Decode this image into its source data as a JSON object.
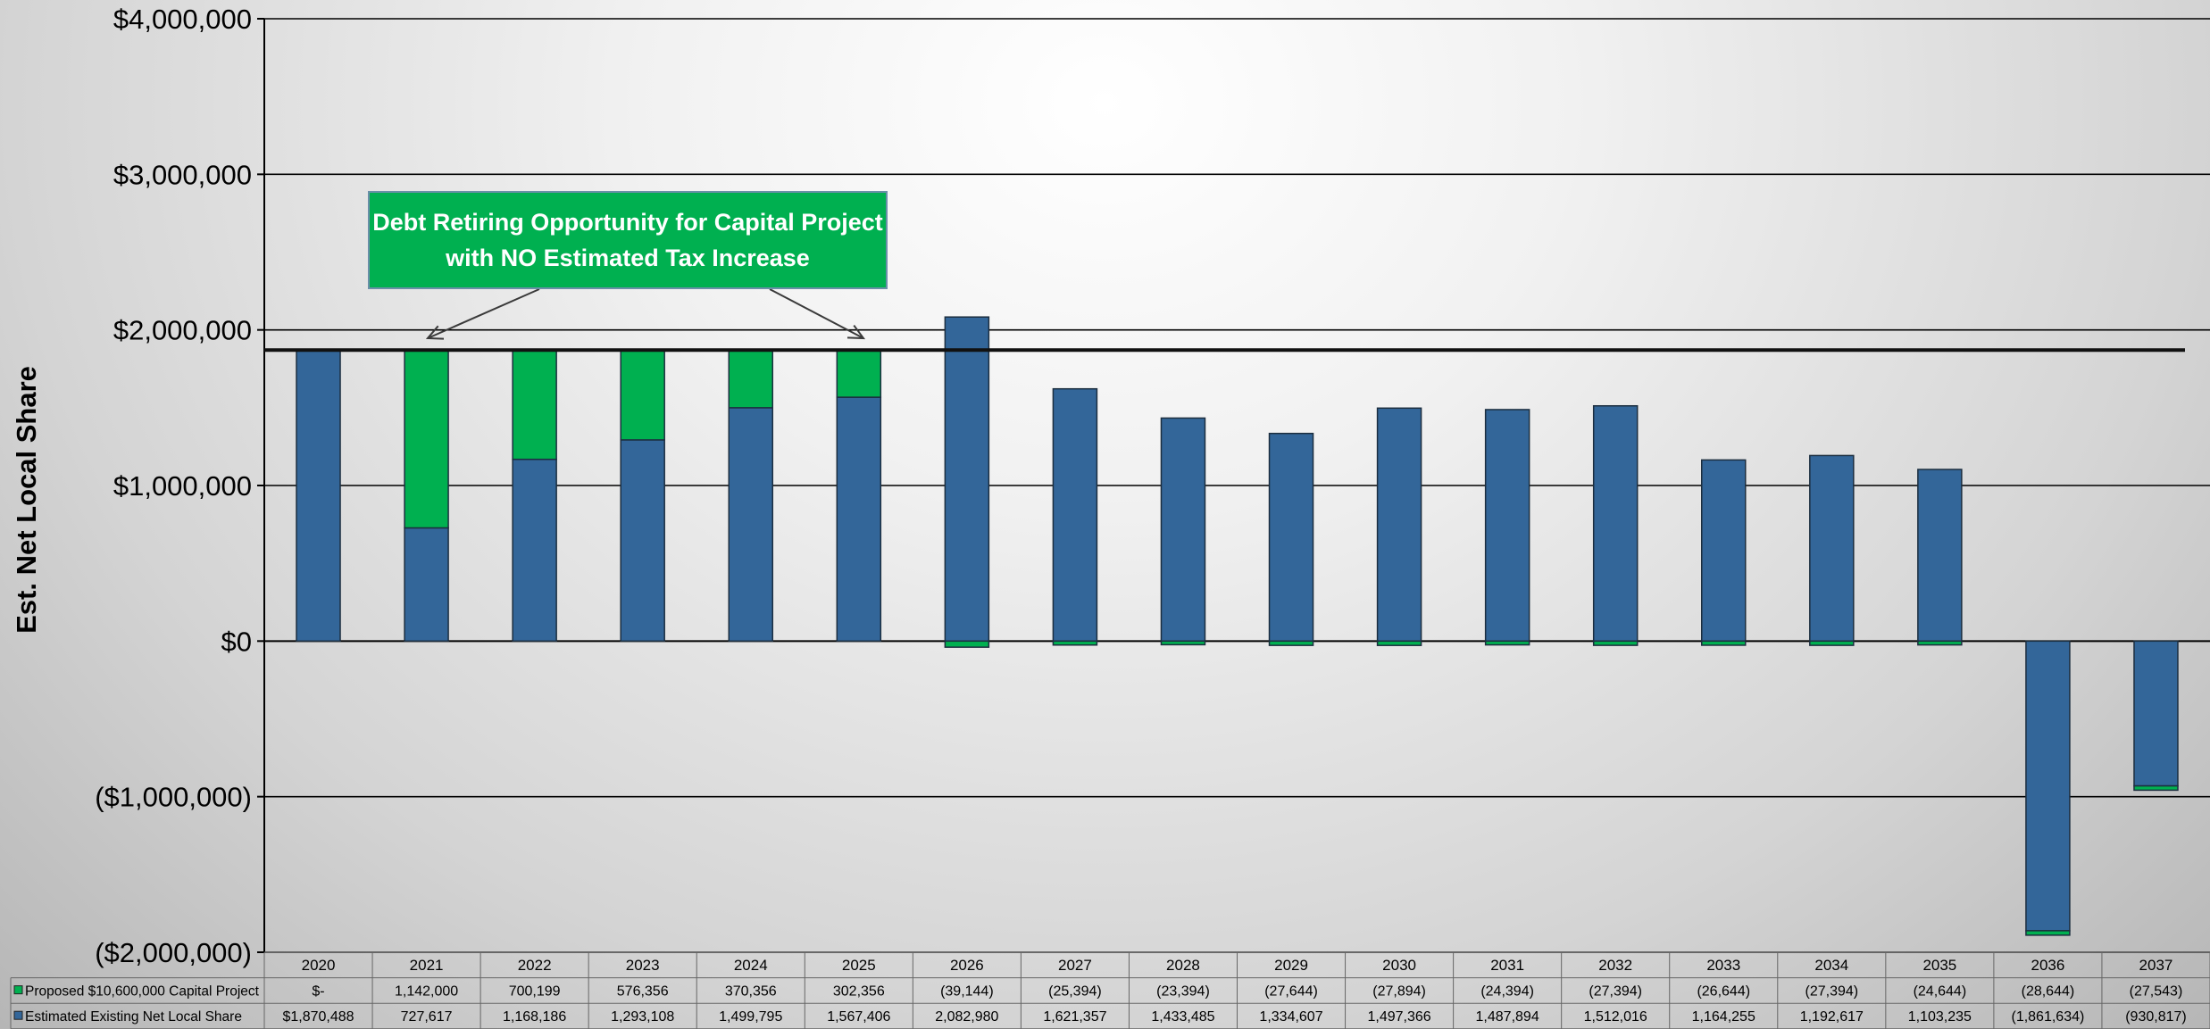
{
  "chart_data": {
    "type": "bar",
    "stacked": true,
    "ylabel": "Est. Net Local Share",
    "ylim": [
      -2000000,
      4000000
    ],
    "yticks": [
      4000000,
      3000000,
      2000000,
      1000000,
      0,
      -1000000,
      -2000000
    ],
    "ytick_labels": [
      "$4,000,000",
      "$3,000,000",
      "$2,000,000",
      "$1,000,000",
      "$0",
      "($1,000,000)",
      "($2,000,000)"
    ],
    "grid": true,
    "reference_line": 1870488,
    "categories": [
      "2020",
      "2021",
      "2022",
      "2023",
      "2024",
      "2025",
      "2026",
      "2027",
      "2028",
      "2029",
      "2030",
      "2031",
      "2032",
      "2033",
      "2034",
      "2035",
      "2036",
      "2037"
    ],
    "series": [
      {
        "name": "Estimated Existing Net Local Share",
        "color": "#336699",
        "values": [
          1870488,
          727617,
          1168186,
          1293108,
          1499795,
          1567406,
          2082980,
          1621357,
          1433485,
          1334607,
          1497366,
          1487894,
          1512016,
          1164255,
          1192617,
          1103235,
          -1861634,
          -930817
        ],
        "labels": [
          "$1,870,488",
          "727,617",
          "1,168,186",
          "1,293,108",
          "1,499,795",
          "1,567,406",
          "2,082,980",
          "1,621,357",
          "1,433,485",
          "1,334,607",
          "1,497,366",
          "1,487,894",
          "1,512,016",
          "1,164,255",
          "1,192,617",
          "1,103,235",
          "(1,861,634)",
          "(930,817)"
        ]
      },
      {
        "name": "Proposed $10,600,000 Capital Project",
        "color": "#00b050",
        "values": [
          0,
          1142000,
          700199,
          576356,
          370356,
          302356,
          -39144,
          -25394,
          -23394,
          -27644,
          -27894,
          -24394,
          -27394,
          -26644,
          -27394,
          -24644,
          -28644,
          -27543
        ],
        "labels": [
          "$-",
          "1,142,000",
          "700,199",
          "576,356",
          "370,356",
          "302,356",
          "(39,144)",
          "(25,394)",
          "(23,394)",
          "(27,644)",
          "(27,894)",
          "(24,394)",
          "(27,394)",
          "(26,644)",
          "(27,394)",
          "(24,644)",
          "(28,644)",
          "(27,543)"
        ]
      }
    ],
    "annotation": {
      "lines": [
        "Debt Retiring Opportunity for Capital Project",
        "with  NO  Estimated Tax Increase"
      ]
    }
  }
}
